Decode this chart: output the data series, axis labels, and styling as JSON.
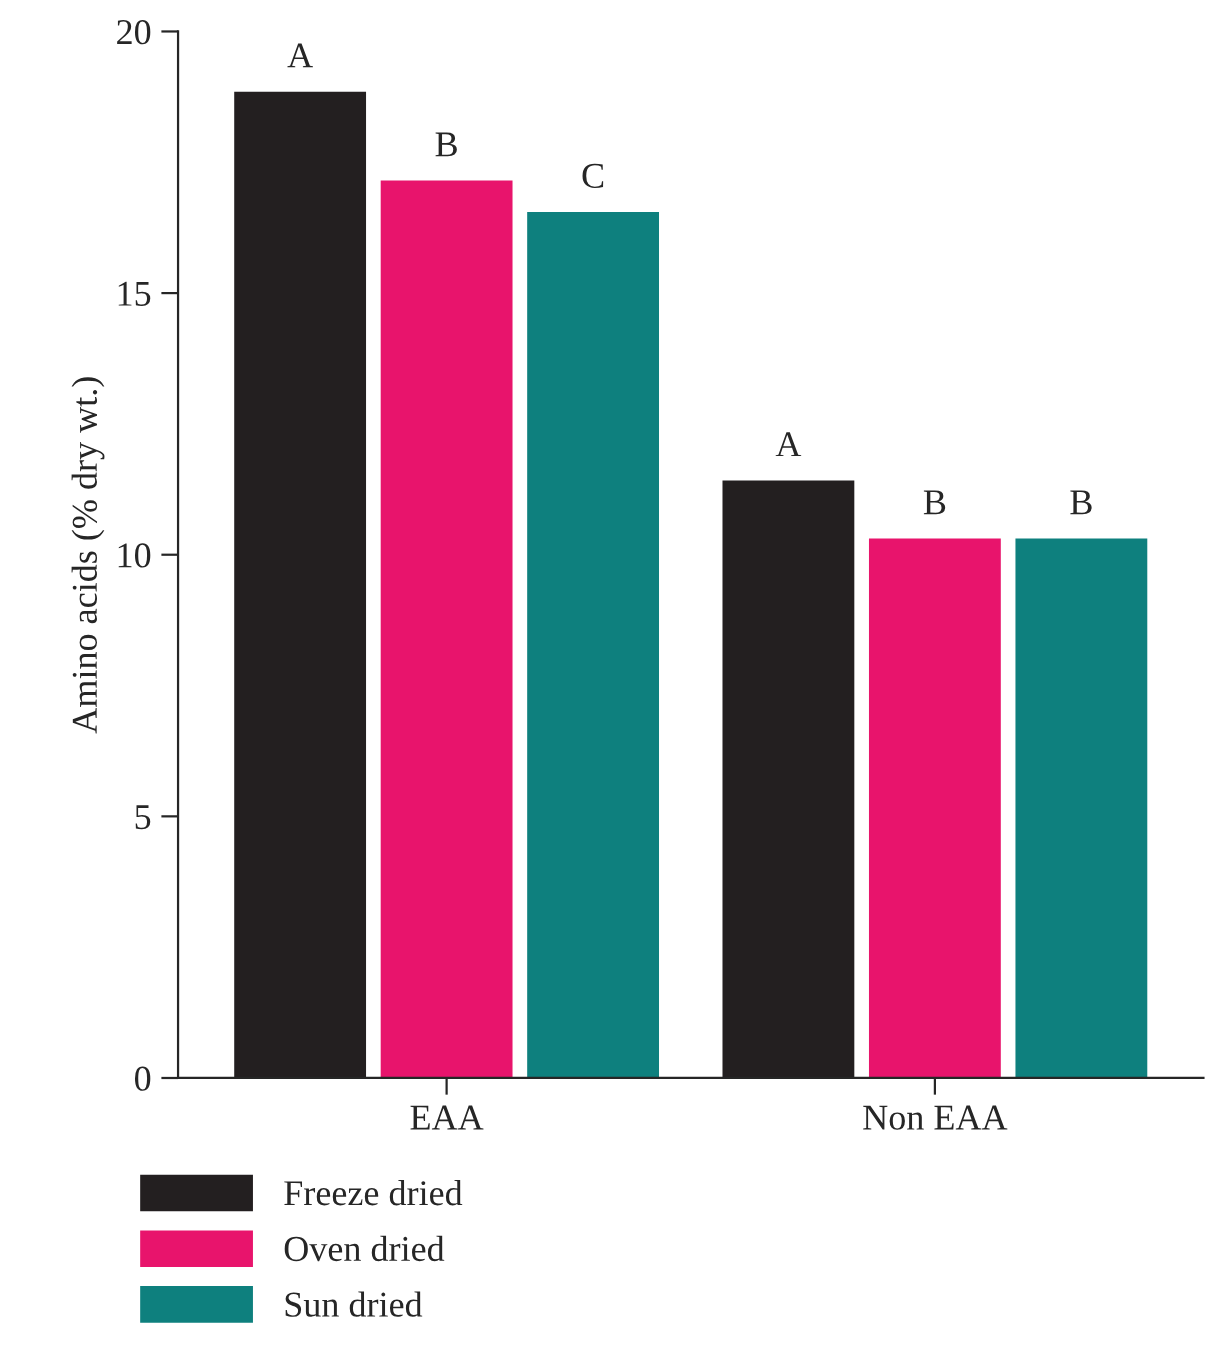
{
  "chart_data": {
    "type": "bar",
    "ylabel": "Amino acids (% dry wt.)",
    "categories": [
      "EAA",
      "Non EAA"
    ],
    "series": [
      {
        "name": "Freeze dried",
        "color": "#231f20",
        "values": [
          18.85,
          11.42
        ],
        "value_labels": [
          "A",
          "A"
        ]
      },
      {
        "name": "Oven dried",
        "color": "#e8146c",
        "values": [
          17.15,
          10.31
        ],
        "value_labels": [
          "B",
          "B"
        ]
      },
      {
        "name": "Sun dried",
        "color": "#0e807e",
        "values": [
          16.55,
          10.31
        ],
        "value_labels": [
          "C",
          "B"
        ]
      }
    ],
    "ylim": [
      0,
      20
    ],
    "yticks": [
      0,
      5,
      10,
      15,
      20
    ],
    "grid": false,
    "legend": "bottom"
  }
}
